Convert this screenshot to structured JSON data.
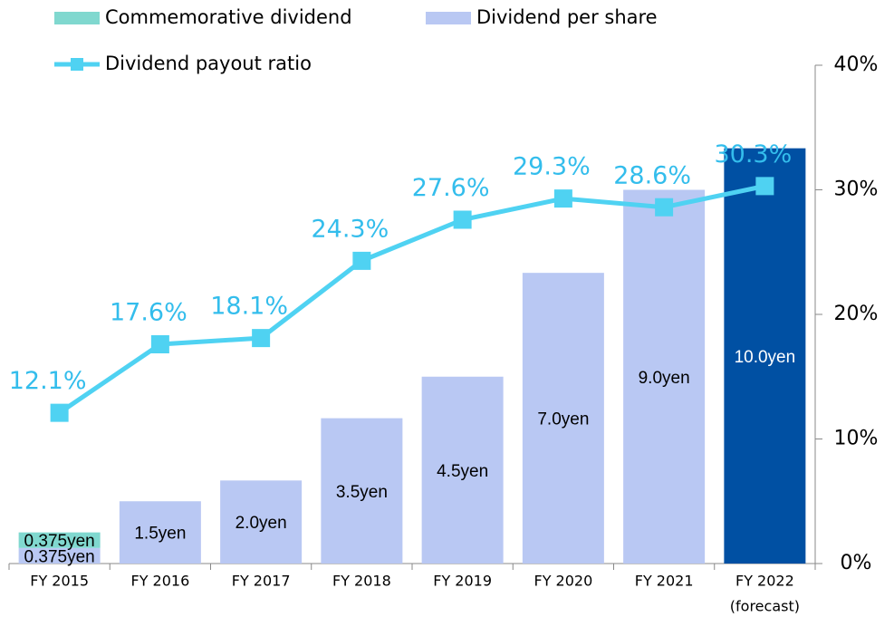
{
  "chart_data": {
    "type": "bar",
    "stacked": true,
    "categories": [
      "FY 2015",
      "FY 2016",
      "FY 2017",
      "FY 2018",
      "FY 2019",
      "FY 2020",
      "FY 2021",
      [
        "FY 2022",
        "(forecast)"
      ]
    ],
    "ylim": [
      0,
      12
    ],
    "y2lim": [
      0,
      40
    ],
    "y2ticks": [
      {
        "value": 0,
        "label": "0%"
      },
      {
        "value": 10,
        "label": "10%"
      },
      {
        "value": 20,
        "label": "20%"
      },
      {
        "value": 30,
        "label": "30%"
      },
      {
        "value": 40,
        "label": "40%"
      }
    ],
    "series": [
      {
        "name": "Commemorative dividend",
        "type": "bar",
        "color": "#80d8cf",
        "values": [
          0.375,
          null,
          null,
          null,
          null,
          null,
          null,
          null
        ],
        "value_labels": [
          "0.375yen",
          null,
          null,
          null,
          null,
          null,
          null,
          null
        ]
      },
      {
        "name": "Dividend per share",
        "type": "bar",
        "color": "#b9c8f3",
        "point_colors": [
          null,
          null,
          null,
          null,
          null,
          null,
          null,
          "#0050a3"
        ],
        "values": [
          0.375,
          1.5,
          2.0,
          3.5,
          4.5,
          7.0,
          9.0,
          10.0
        ],
        "value_labels": [
          "0.375yen",
          "1.5yen",
          "2.0yen",
          "3.5yen",
          "4.5yen",
          "7.0yen",
          "9.0yen",
          "10.0yen"
        ]
      },
      {
        "name": "Dividend payout ratio",
        "type": "line",
        "axis": "y2",
        "color": "#4fd2f2",
        "values": [
          12.1,
          17.6,
          18.1,
          24.3,
          27.6,
          29.3,
          28.6,
          30.3
        ],
        "value_labels": [
          "12.1%",
          "17.6%",
          "18.1%",
          "24.3%",
          "27.6%",
          "29.3%",
          "28.6%",
          "30.3%"
        ]
      }
    ]
  }
}
